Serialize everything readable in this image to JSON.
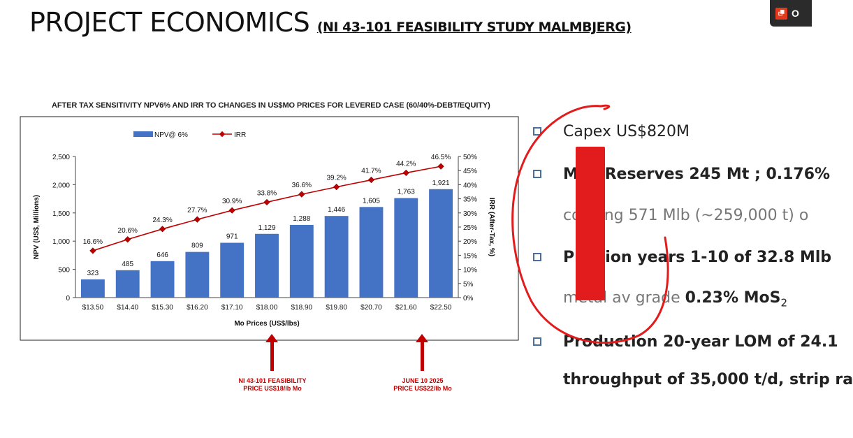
{
  "slide": {
    "title": "PROJECT ECONOMICS",
    "subtitle": "(NI 43-101 FEASIBILITY STUDY MALMBJERG)"
  },
  "pdf_badge": {
    "label": "O",
    "icon": "pdf-icon",
    "color": "#e23a1e"
  },
  "colors": {
    "bar": "#4472c4",
    "irr_line": "#c00000",
    "annotation": "#c00000",
    "red_mark": "#e21c1c"
  },
  "chart_data": {
    "type": "bar",
    "title": "AFTER TAX SENSITIVITY NPV6% AND IRR TO CHANGES IN US$MO PRICES FOR LEVERED CASE (60/40%-DEBT/EQUITY)",
    "xlabel": "Mo Prices (US$/lbs)",
    "ylabel": "NPV (US$, Millions)",
    "y2label": "IRR (After-Tax, %)",
    "categories": [
      "$13.50",
      "$14.40",
      "$15.30",
      "$16.20",
      "$17.10",
      "$18.00",
      "$18.90",
      "$19.80",
      "$20.70",
      "$21.60",
      "$22.50"
    ],
    "series": [
      {
        "name": "NPV@ 6%",
        "type": "bar",
        "axis": "left",
        "values": [
          323,
          485,
          646,
          809,
          971,
          1129,
          1288,
          1446,
          1605,
          1763,
          1921
        ]
      },
      {
        "name": "IRR",
        "type": "line",
        "axis": "right",
        "values": [
          16.6,
          20.6,
          24.3,
          27.7,
          30.9,
          33.8,
          36.6,
          39.2,
          41.7,
          44.2,
          46.5
        ]
      }
    ],
    "bar_labels": [
      "323",
      "485",
      "646",
      "809",
      "971",
      "1,129",
      "1,288",
      "1,446",
      "1,605",
      "1,763",
      "1,921"
    ],
    "irr_labels": [
      "16.6%",
      "20.6%",
      "24.3%",
      "27.7%",
      "30.9%",
      "33.8%",
      "36.6%",
      "39.2%",
      "41.7%",
      "44.2%",
      "46.5%"
    ],
    "ylim": [
      0,
      2500
    ],
    "y2lim": [
      0,
      50
    ],
    "yticks": [
      "0",
      "500",
      "1,000",
      "1,500",
      "2,000",
      "2,500"
    ],
    "y2ticks": [
      "0%",
      "5%",
      "10%",
      "15%",
      "20%",
      "25%",
      "30%",
      "35%",
      "40%",
      "45%",
      "50%"
    ],
    "legend": "top-center",
    "grid": false
  },
  "annotations": [
    {
      "line1": "NI 43-101 FEASIBILITY",
      "line2": "PRICE US$18/lb Mo",
      "category": "$18.00"
    },
    {
      "line1": "JUNE  10 2025",
      "line2": "PRICE US$22/lb Mo",
      "category": "$21.60"
    }
  ],
  "bullets": [
    {
      "text": "Capex US$820M"
    },
    {
      "text": "M    al Reserves 245 Mt ; 0.176%"
    },
    {
      "text": "co    ining 571 Mlb (~259,000 t) o"
    },
    {
      "text": "Pro    tion years 1-10 of 32.8 Mlb"
    },
    {
      "text": "metal av grade ",
      "strong": "0.23% MoS",
      "sub": "2"
    },
    {
      "text": "Production 20-year LOM of 24.1"
    },
    {
      "text": "throughput of 35,000 t/d, strip ra"
    }
  ]
}
